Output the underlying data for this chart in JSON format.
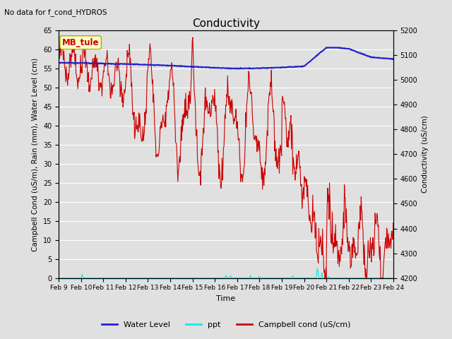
{
  "title": "Conductivity",
  "top_left_text": "No data for f_cond_HYDROS",
  "station_label": "MB_tule",
  "xlabel": "Time",
  "ylabel_left": "Campbell Cond (uS/m), Rain (mm), Water Level (cm)",
  "ylabel_right": "Conductivity (uS/cm)",
  "ylim_left": [
    0,
    65
  ],
  "ylim_right": [
    4200,
    5200
  ],
  "x_tick_labels": [
    "Feb 9",
    "Feb 10",
    "Feb 11",
    "Feb 12",
    "Feb 13",
    "Feb 14",
    "Feb 15",
    "Feb 16",
    "Feb 17",
    "Feb 18",
    "Feb 19",
    "Feb 20",
    "Feb 21",
    "Feb 22",
    "Feb 23",
    "Feb 24"
  ],
  "background_color": "#e0e0e0",
  "plot_bg_color": "#e0e0e0",
  "grid_color": "#ffffff",
  "water_level_color": "#2222cc",
  "ppt_color": "#00eeee",
  "campbell_color": "#cc0000",
  "legend_entries": [
    "Water Level",
    "ppt",
    "Campbell cond (uS/cm)"
  ],
  "station_box_facecolor": "#ffffcc",
  "station_box_edgecolor": "#aaaa00",
  "station_text_color": "#cc0000",
  "left_yticks": [
    0,
    5,
    10,
    15,
    20,
    25,
    30,
    35,
    40,
    45,
    50,
    55,
    60,
    65
  ],
  "right_yticks": [
    4200,
    4300,
    4400,
    4500,
    4600,
    4700,
    4800,
    4900,
    5000,
    5100,
    5200
  ]
}
